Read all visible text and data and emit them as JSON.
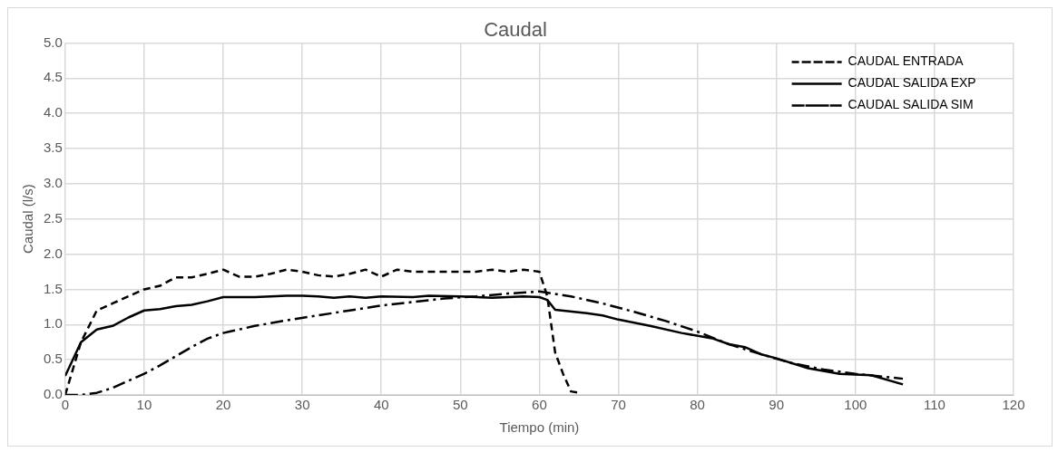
{
  "chart_data": {
    "type": "line",
    "title": "Caudal",
    "xlabel": "Tiempo (min)",
    "ylabel": "Caudal (l/s)",
    "xlim": [
      0,
      120
    ],
    "xticks": [
      0,
      10,
      20,
      30,
      40,
      50,
      60,
      70,
      80,
      90,
      100,
      110,
      120
    ],
    "ylim": [
      0,
      5
    ],
    "yticks": [
      {
        "value": 0,
        "label": "0.0"
      },
      {
        "value": 0.5,
        "label": "0.5"
      },
      {
        "value": 1,
        "label": "1.0"
      },
      {
        "value": 1.5,
        "label": "1.5"
      },
      {
        "value": 2,
        "label": "2.0"
      },
      {
        "value": 2.5,
        "label": "2.5"
      },
      {
        "value": 3,
        "label": "3.0"
      },
      {
        "value": 3.5,
        "label": "3.5"
      },
      {
        "value": 4,
        "label": "4.0"
      },
      {
        "value": 4.5,
        "label": "4.5"
      },
      {
        "value": 5,
        "label": "5.0"
      }
    ],
    "grid": true,
    "legend": "top right",
    "marker": "none",
    "series": [
      {
        "name": "CAUDAL ENTRADA",
        "color": "#000000",
        "line_style": "dashed",
        "x": [
          0,
          2,
          4,
          6,
          8,
          10,
          12,
          14,
          16,
          18,
          20,
          22,
          24,
          26,
          28,
          30,
          32,
          34,
          36,
          38,
          40,
          42,
          44,
          46,
          48,
          50,
          52,
          54,
          56,
          58,
          60,
          61,
          62,
          63,
          64,
          65
        ],
        "values": [
          0,
          0.75,
          1.2,
          1.3,
          1.4,
          1.5,
          1.55,
          1.67,
          1.67,
          1.72,
          1.78,
          1.68,
          1.68,
          1.72,
          1.78,
          1.75,
          1.7,
          1.68,
          1.72,
          1.78,
          1.68,
          1.78,
          1.75,
          1.75,
          1.75,
          1.75,
          1.75,
          1.78,
          1.75,
          1.78,
          1.75,
          1.4,
          0.6,
          0.3,
          0.05,
          0.03
        ]
      },
      {
        "name": "CAUDAL SALIDA EXP",
        "color": "#000000",
        "line_style": "solid",
        "x": [
          0,
          2,
          4,
          6,
          8,
          10,
          12,
          14,
          16,
          18,
          20,
          24,
          28,
          30,
          32,
          34,
          36,
          38,
          40,
          44,
          46,
          50,
          54,
          58,
          60,
          61,
          62,
          66,
          68,
          70,
          74,
          78,
          82,
          84,
          86,
          88,
          90,
          94,
          98,
          102,
          106
        ],
        "values": [
          0.27,
          0.75,
          0.93,
          0.98,
          1.1,
          1.2,
          1.22,
          1.26,
          1.28,
          1.33,
          1.39,
          1.39,
          1.41,
          1.41,
          1.4,
          1.38,
          1.4,
          1.38,
          1.4,
          1.39,
          1.41,
          1.4,
          1.38,
          1.4,
          1.39,
          1.35,
          1.21,
          1.16,
          1.13,
          1.07,
          0.98,
          0.88,
          0.8,
          0.72,
          0.68,
          0.58,
          0.52,
          0.38,
          0.3,
          0.28,
          0.15
        ]
      },
      {
        "name": "CAUDAL SALIDA SIM",
        "color": "#000000",
        "line_style": "dashdot",
        "x": [
          0,
          2,
          4,
          6,
          8,
          10,
          12,
          14,
          16,
          18,
          20,
          24,
          28,
          32,
          36,
          40,
          44,
          48,
          52,
          56,
          60,
          64,
          68,
          72,
          76,
          80,
          84,
          88,
          92,
          96,
          100,
          106
        ],
        "values": [
          0,
          0,
          0.03,
          0.1,
          0.2,
          0.3,
          0.42,
          0.55,
          0.68,
          0.8,
          0.88,
          0.98,
          1.06,
          1.13,
          1.2,
          1.27,
          1.32,
          1.37,
          1.4,
          1.44,
          1.47,
          1.4,
          1.3,
          1.18,
          1.05,
          0.9,
          0.72,
          0.58,
          0.45,
          0.36,
          0.3,
          0.23
        ]
      }
    ]
  }
}
